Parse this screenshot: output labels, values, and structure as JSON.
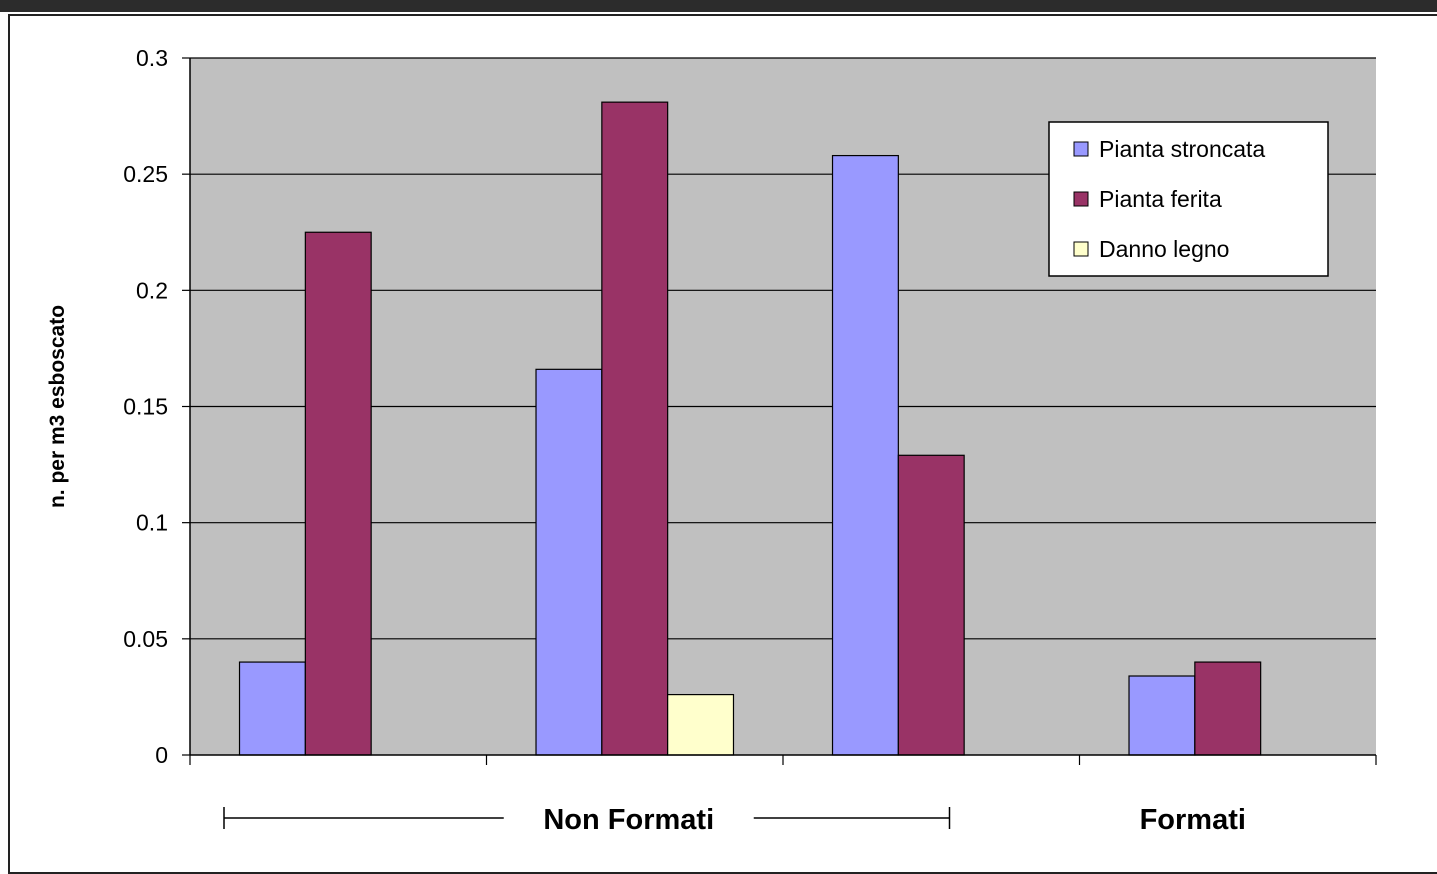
{
  "chart_data": {
    "type": "bar",
    "title": "",
    "xlabel": "",
    "ylabel": "n. per m3 esboscato",
    "ylim": [
      0,
      0.3
    ],
    "yticks": [
      "0",
      "0.05",
      "0.1",
      "0.15",
      "0.2",
      "0.25",
      "0.3"
    ],
    "grid": true,
    "legend_position": "top-right",
    "categories": [
      "",
      "",
      "",
      ""
    ],
    "series": [
      {
        "name": "Pianta stroncata",
        "color": "#9999ff",
        "values": [
          0.04,
          0.166,
          0.258,
          0.034
        ]
      },
      {
        "name": "Pianta ferita",
        "color": "#993366",
        "values": [
          0.225,
          0.281,
          0.129,
          0.04
        ]
      },
      {
        "name": "Danno legno",
        "color": "#ffffcc",
        "values": [
          0,
          0.026,
          0,
          0
        ]
      }
    ],
    "group_labels": [
      {
        "text": "Non Formati",
        "spans_categories": [
          0,
          2
        ]
      },
      {
        "text": "Formati",
        "spans_categories": [
          3,
          3
        ]
      }
    ],
    "plot_background": "#c0c0c0"
  }
}
